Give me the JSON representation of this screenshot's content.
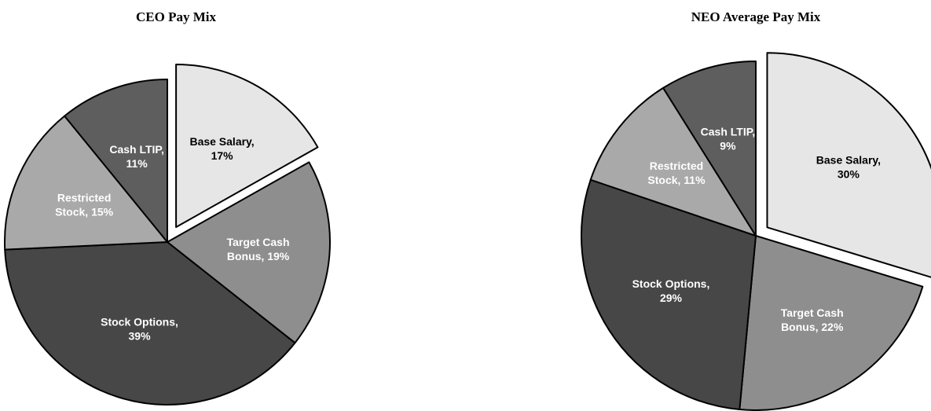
{
  "chart_data": [
    {
      "type": "pie",
      "title": "CEO Pay Mix",
      "slices": [
        {
          "label_lines": [
            "Base Salary,",
            "17%"
          ],
          "value": 17,
          "color": "#e6e6e6",
          "text_color": "#000000",
          "exploded": true
        },
        {
          "label_lines": [
            "Target Cash",
            "Bonus, 19%"
          ],
          "value": 19,
          "color": "#8e8e8e",
          "text_color": "#ffffff",
          "exploded": false
        },
        {
          "label_lines": [
            "Stock Options,",
            "39%"
          ],
          "value": 39,
          "color": "#474747",
          "text_color": "#ffffff",
          "exploded": false
        },
        {
          "label_lines": [
            "Restricted",
            "Stock, 15%"
          ],
          "value": 15,
          "color": "#a9a9a9",
          "text_color": "#ffffff",
          "exploded": false
        },
        {
          "label_lines": [
            "Cash LTIP,",
            "11%"
          ],
          "value": 11,
          "color": "#5e5e5e",
          "text_color": "#ffffff",
          "exploded": false
        }
      ]
    },
    {
      "type": "pie",
      "title": "NEO Average Pay Mix",
      "slices": [
        {
          "label_lines": [
            "Base Salary,",
            "30%"
          ],
          "value": 30,
          "color": "#e6e6e6",
          "text_color": "#000000",
          "exploded": true
        },
        {
          "label_lines": [
            "Target Cash",
            "Bonus, 22%"
          ],
          "value": 22,
          "color": "#8e8e8e",
          "text_color": "#ffffff",
          "exploded": false
        },
        {
          "label_lines": [
            "Stock Options,",
            "29%"
          ],
          "value": 29,
          "color": "#474747",
          "text_color": "#ffffff",
          "exploded": false
        },
        {
          "label_lines": [
            "Restricted",
            "Stock, 11%"
          ],
          "value": 11,
          "color": "#a9a9a9",
          "text_color": "#ffffff",
          "exploded": false
        },
        {
          "label_lines": [
            "Cash LTIP,",
            "9%"
          ],
          "value": 9,
          "color": "#5e5e5e",
          "text_color": "#ffffff",
          "exploded": false
        }
      ]
    }
  ]
}
